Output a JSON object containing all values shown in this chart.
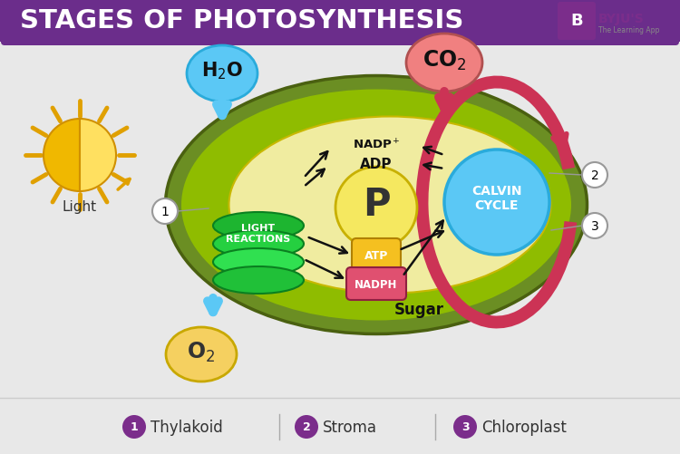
{
  "title": "STAGES OF PHOTOSYNTHESIS",
  "title_bg": "#6B2D8B",
  "title_color": "#FFFFFF",
  "bg_color": "#E8E8E8",
  "byju_color": "#7B2D8B",
  "legend_items": [
    {
      "num": "1",
      "label": "Thylakoid",
      "color": "#7B2D8B"
    },
    {
      "num": "2",
      "label": "Stroma",
      "color": "#7B2D8B"
    },
    {
      "num": "3",
      "label": "Chloroplast",
      "color": "#7B2D8B"
    }
  ],
  "chloroplast_outer_color": "#6B8E23",
  "chloroplast_inner_color": "#8FBC00",
  "stroma_color": "#F0ECA0",
  "h2o_color": "#5BC8F5",
  "co2_color": "#F08080",
  "o2_color": "#F5D060",
  "p_color": "#F5E860",
  "atp_color": "#F5C020",
  "nadph_color": "#E05070",
  "calvin_color": "#5BC8F5",
  "light_rx_color": "#2ECC40",
  "sun_outer_color": "#F5C020",
  "sun_ray_color": "#E0A000",
  "arrow_color": "#CC3355",
  "blue_arrow_color": "#5BC8F5",
  "black_arrow_color": "#111111"
}
